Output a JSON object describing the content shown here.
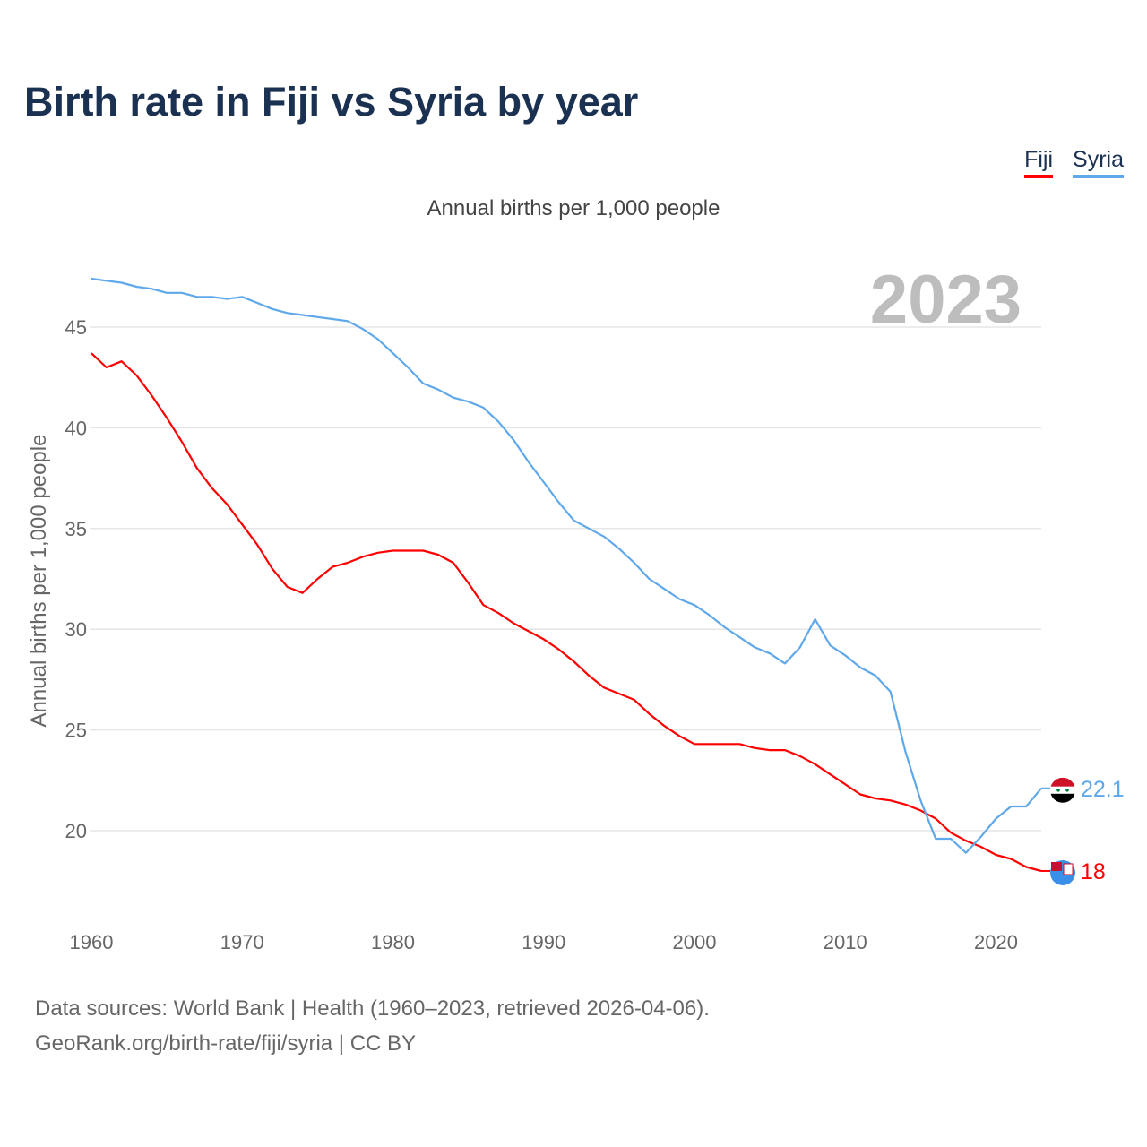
{
  "title": "Birth rate in Fiji vs Syria by year",
  "footer": {
    "line1": "Data sources: World Bank | Health (1960–2023, retrieved 2026-04-06).",
    "line2": "GeoRank.org/birth-rate/fiji/syria | CC BY"
  },
  "chart_data": {
    "type": "line",
    "title": "Birth rate in Fiji vs Syria by year",
    "subtitle": "Annual births per 1,000 people",
    "ylabel": "Annual births per 1,000 people",
    "xlabel": "",
    "year_label": "2023",
    "xlim": [
      1960,
      2023
    ],
    "ylim": [
      16.5,
      47.5
    ],
    "xticks": [
      "1960",
      "1970",
      "1980",
      "1990",
      "2000",
      "2010",
      "2020"
    ],
    "yticks": [
      "20",
      "25",
      "30",
      "35",
      "40",
      "45"
    ],
    "grid": true,
    "legend_position": "top-right",
    "x": [
      1960,
      1961,
      1962,
      1963,
      1964,
      1965,
      1966,
      1967,
      1968,
      1969,
      1970,
      1971,
      1972,
      1973,
      1974,
      1975,
      1976,
      1977,
      1978,
      1979,
      1980,
      1981,
      1982,
      1983,
      1984,
      1985,
      1986,
      1987,
      1988,
      1989,
      1990,
      1991,
      1992,
      1993,
      1994,
      1995,
      1996,
      1997,
      1998,
      1999,
      2000,
      2001,
      2002,
      2003,
      2004,
      2005,
      2006,
      2007,
      2008,
      2009,
      2010,
      2011,
      2012,
      2013,
      2014,
      2015,
      2016,
      2017,
      2018,
      2019,
      2020,
      2021,
      2022,
      2023
    ],
    "series": [
      {
        "name": "Fiji",
        "color": "#ff0000",
        "end_label": "18",
        "values": [
          43.7,
          43.0,
          43.3,
          42.6,
          41.6,
          40.5,
          39.3,
          38.0,
          37.0,
          36.2,
          35.2,
          34.2,
          33.0,
          32.1,
          31.8,
          32.5,
          33.1,
          33.3,
          33.6,
          33.8,
          33.9,
          33.9,
          33.9,
          33.7,
          33.3,
          32.3,
          31.2,
          30.8,
          30.3,
          29.9,
          29.5,
          29.0,
          28.4,
          27.7,
          27.1,
          26.8,
          26.5,
          25.8,
          25.2,
          24.7,
          24.3,
          24.3,
          24.3,
          24.3,
          24.1,
          24.0,
          24.0,
          23.7,
          23.3,
          22.8,
          22.3,
          21.8,
          21.6,
          21.5,
          21.3,
          21.0,
          20.6,
          19.9,
          19.5,
          19.2,
          18.8,
          18.6,
          18.2,
          18.0
        ]
      },
      {
        "name": "Syria",
        "color": "#5fa8ea",
        "end_label": "22.1",
        "values": [
          47.4,
          47.3,
          47.2,
          47.0,
          46.9,
          46.7,
          46.7,
          46.5,
          46.5,
          46.4,
          46.5,
          46.2,
          45.9,
          45.7,
          45.6,
          45.5,
          45.4,
          45.3,
          44.9,
          44.4,
          43.7,
          43.0,
          42.2,
          41.9,
          41.5,
          41.3,
          41.0,
          40.3,
          39.4,
          38.3,
          37.3,
          36.3,
          35.4,
          35.0,
          34.6,
          34.0,
          33.3,
          32.5,
          32.0,
          31.5,
          31.2,
          30.7,
          30.1,
          29.6,
          29.1,
          28.8,
          28.3,
          29.1,
          30.5,
          29.2,
          28.7,
          28.1,
          27.7,
          26.9,
          23.9,
          21.5,
          19.6,
          19.6,
          18.9,
          19.7,
          20.6,
          21.2,
          21.2,
          22.1
        ]
      }
    ]
  }
}
